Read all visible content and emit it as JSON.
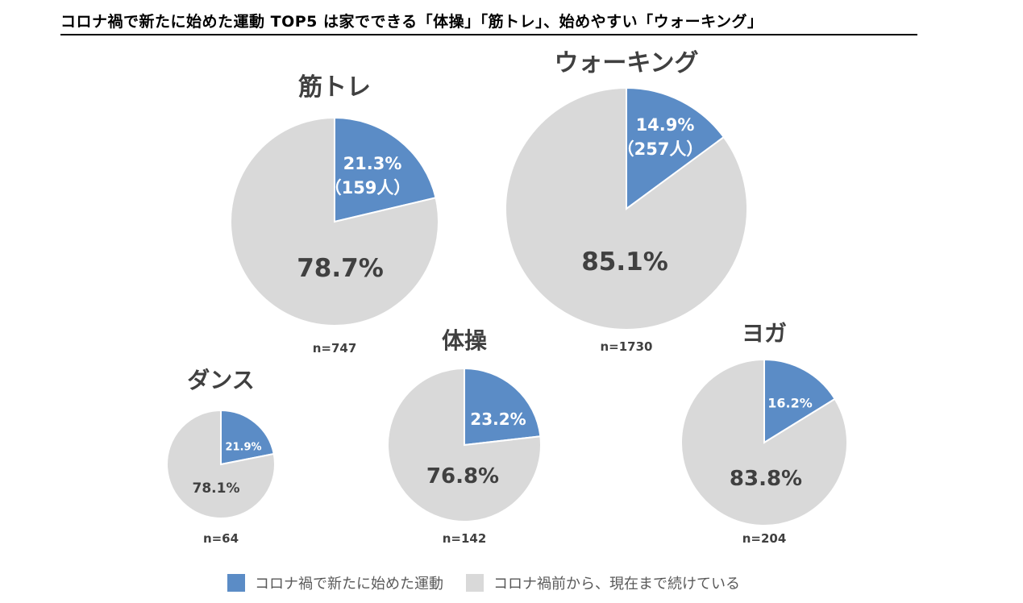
{
  "title": "コロナ禍で新たに始めた運動 TOP5 は家でできる「体操」「筋トレ」、始めやすい「ウォーキング」",
  "colors": {
    "new": "#5b8cc6",
    "continued": "#d9d9d9",
    "text": "#404040"
  },
  "chart_data": {
    "type": "pie",
    "legend": {
      "placement": "bottom",
      "entries": [
        "コロナ禍で新たに始めた運動",
        "コロナ禍前から、現在まで続けている"
      ]
    },
    "charts": [
      {
        "title": "筋トレ",
        "n_label": "n=747",
        "values": [
          21.3,
          78.7
        ],
        "labels": [
          "21.3%",
          "78.7%"
        ],
        "count_label": "（159人）"
      },
      {
        "title": "ウォーキング",
        "n_label": "n=1730",
        "values": [
          14.9,
          85.1
        ],
        "labels": [
          "14.9%",
          "85.1%"
        ],
        "count_label": "（257人）"
      },
      {
        "title": "ダンス",
        "n_label": "n=64",
        "values": [
          21.9,
          78.1
        ],
        "labels": [
          "21.9%",
          "78.1%"
        ],
        "count_label": ""
      },
      {
        "title": "体操",
        "n_label": "n=142",
        "values": [
          23.2,
          76.8
        ],
        "labels": [
          "23.2%",
          "76.8%"
        ],
        "count_label": ""
      },
      {
        "title": "ヨガ",
        "n_label": "n=204",
        "values": [
          16.2,
          83.8
        ],
        "labels": [
          "16.2%",
          "83.8%"
        ],
        "count_label": ""
      }
    ]
  }
}
